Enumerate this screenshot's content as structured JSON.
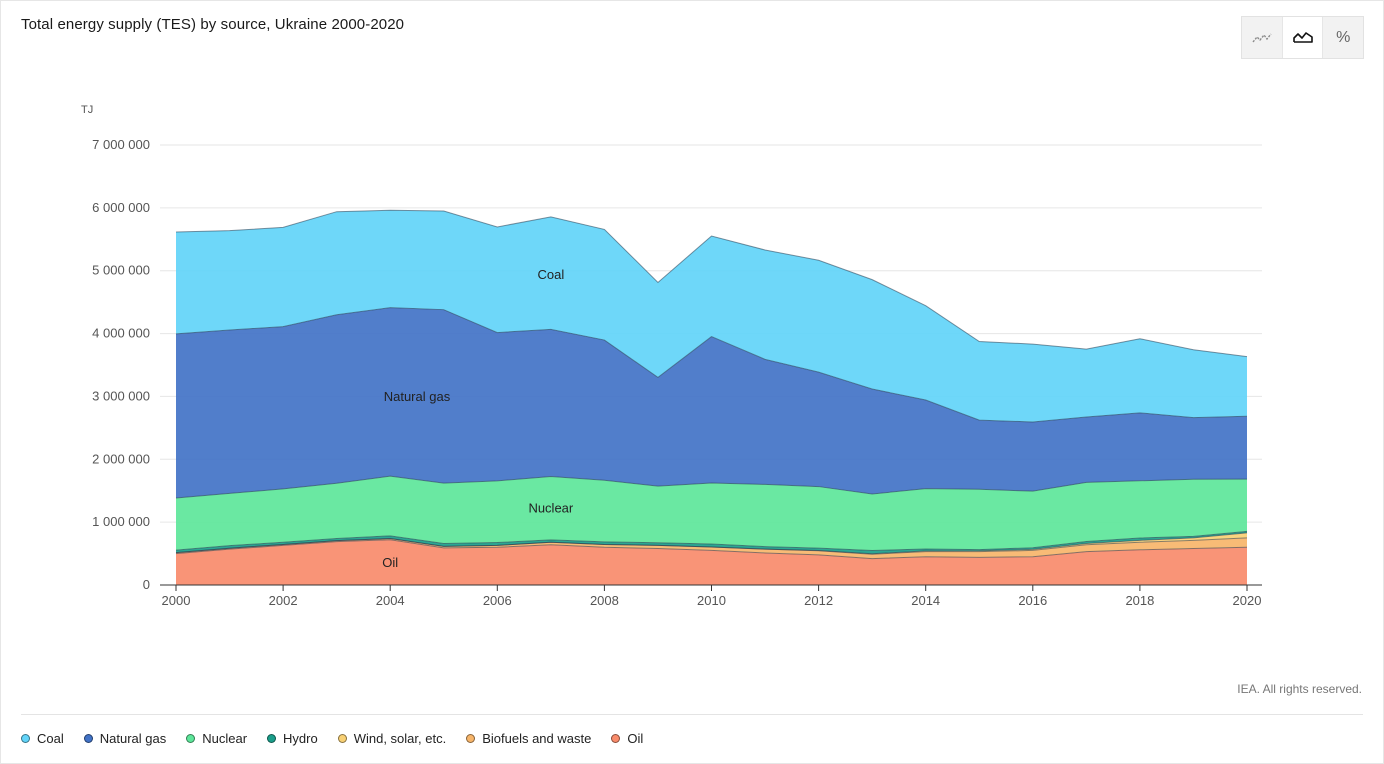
{
  "title": "Total energy supply (TES) by source, Ukraine 2000-2020",
  "copyright": "IEA. All rights reserved.",
  "view_toggle": [
    {
      "icon": "line-chart-icon",
      "active": false
    },
    {
      "icon": "area-chart-icon",
      "active": true
    },
    {
      "icon": "percent-icon",
      "label": "%",
      "active": false
    }
  ],
  "legend": [
    {
      "label": "Coal",
      "color": "#62d4f9"
    },
    {
      "label": "Natural gas",
      "color": "#4273c7"
    },
    {
      "label": "Nuclear",
      "color": "#5de69a"
    },
    {
      "label": "Hydro",
      "color": "#1a9e8a"
    },
    {
      "label": "Wind, solar, etc.",
      "color": "#f8d074"
    },
    {
      "label": "Biofuels and waste",
      "color": "#f7b56a"
    },
    {
      "label": "Oil",
      "color": "#f98b6b"
    }
  ],
  "chart_data": {
    "type": "area",
    "stacked": true,
    "unit": "TJ",
    "ylim": [
      0,
      7000000
    ],
    "y_ticks": [
      0,
      1000000,
      2000000,
      3000000,
      4000000,
      5000000,
      6000000,
      7000000
    ],
    "y_tick_labels": [
      "0",
      "1 000 000",
      "2 000 000",
      "3 000 000",
      "4 000 000",
      "5 000 000",
      "6 000 000",
      "7 000 000"
    ],
    "x": [
      2000,
      2001,
      2002,
      2003,
      2004,
      2005,
      2006,
      2007,
      2008,
      2009,
      2010,
      2011,
      2012,
      2013,
      2014,
      2015,
      2016,
      2017,
      2018,
      2019,
      2020
    ],
    "x_ticks": [
      2000,
      2002,
      2004,
      2006,
      2008,
      2010,
      2012,
      2014,
      2016,
      2018,
      2020
    ],
    "grid": true,
    "series": [
      {
        "name": "Oil",
        "color": "#f98b6b",
        "label_at": {
          "x": 2004,
          "y": 350000
        },
        "values": [
          500000,
          570000,
          630000,
          690000,
          720000,
          590000,
          600000,
          640000,
          600000,
          580000,
          550000,
          510000,
          480000,
          420000,
          450000,
          440000,
          450000,
          530000,
          560000,
          580000,
          600000
        ]
      },
      {
        "name": "Biofuels and waste",
        "color": "#f7b56a",
        "values": [
          15000,
          15000,
          15000,
          15000,
          20000,
          25000,
          30000,
          40000,
          45000,
          50000,
          55000,
          60000,
          65000,
          70000,
          80000,
          90000,
          100000,
          110000,
          120000,
          130000,
          150000
        ]
      },
      {
        "name": "Wind, solar, etc.",
        "color": "#f8d074",
        "values": [
          0,
          0,
          0,
          0,
          0,
          0,
          0,
          0,
          0,
          0,
          0,
          1000,
          3000,
          8000,
          12000,
          14000,
          16000,
          20000,
          30000,
          40000,
          80000
        ]
      },
      {
        "name": "Hydro",
        "color": "#1a9e8a",
        "values": [
          40000,
          42000,
          35000,
          34000,
          42000,
          45000,
          46000,
          37000,
          42000,
          43000,
          47000,
          39000,
          38000,
          50000,
          31000,
          19000,
          27000,
          32000,
          38000,
          23000,
          24000
        ]
      },
      {
        "name": "Nuclear",
        "color": "#5de69a",
        "label_at": {
          "x": 2007,
          "y": 1220000
        },
        "values": [
          830000,
          830000,
          850000,
          880000,
          950000,
          960000,
          980000,
          1010000,
          980000,
          900000,
          970000,
          990000,
          980000,
          900000,
          960000,
          960000,
          900000,
          940000,
          910000,
          910000,
          830000
        ]
      },
      {
        "name": "Natural gas",
        "color": "#4273c7",
        "label_at": {
          "x": 2004.5,
          "y": 2990000
        },
        "values": [
          2610000,
          2600000,
          2580000,
          2680000,
          2680000,
          2760000,
          2360000,
          2340000,
          2230000,
          1730000,
          2330000,
          1990000,
          1820000,
          1670000,
          1410000,
          1100000,
          1100000,
          1040000,
          1080000,
          980000,
          1000000
        ]
      },
      {
        "name": "Coal",
        "color": "#62d4f9",
        "label_at": {
          "x": 2007,
          "y": 4930000
        },
        "values": [
          1620000,
          1580000,
          1580000,
          1640000,
          1550000,
          1570000,
          1680000,
          1790000,
          1760000,
          1510000,
          1600000,
          1740000,
          1780000,
          1740000,
          1500000,
          1250000,
          1240000,
          1080000,
          1180000,
          1080000,
          950000
        ]
      }
    ]
  }
}
